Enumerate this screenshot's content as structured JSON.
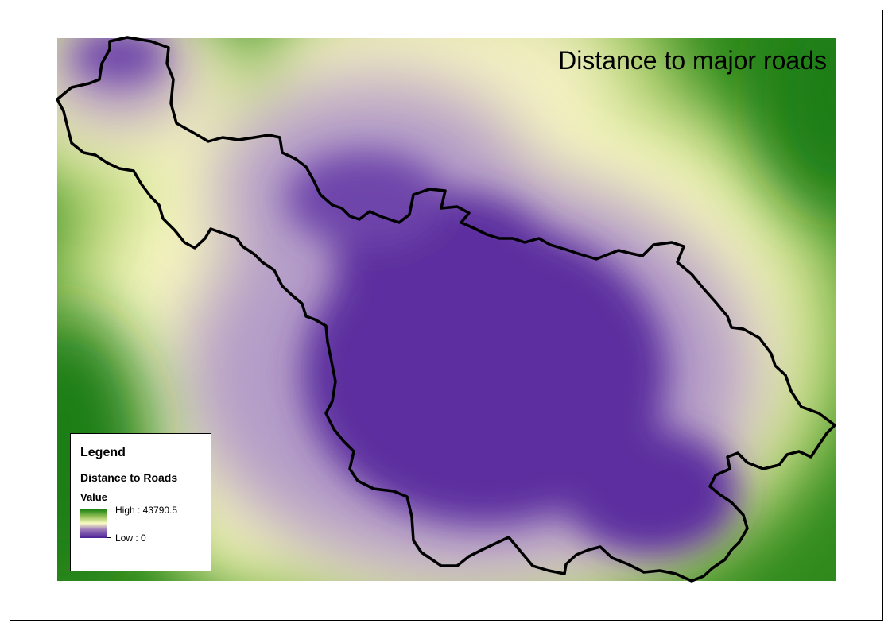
{
  "map": {
    "title": "Distance to major roads"
  },
  "legend": {
    "title": "Legend",
    "layer_name": "Distance to Roads",
    "field_name": "Value",
    "high_label": "High : 43790.5",
    "low_label": "Low : 0",
    "high_value": 43790.5,
    "low_value": 0
  },
  "colors": {
    "ramp_low": "#4b1f96",
    "ramp_mid_low": "#9a78b8",
    "ramp_mid": "#fbfbc7",
    "ramp_mid_high": "#9ac35a",
    "ramp_high": "#0e7a0a",
    "boundary": "#000000"
  }
}
